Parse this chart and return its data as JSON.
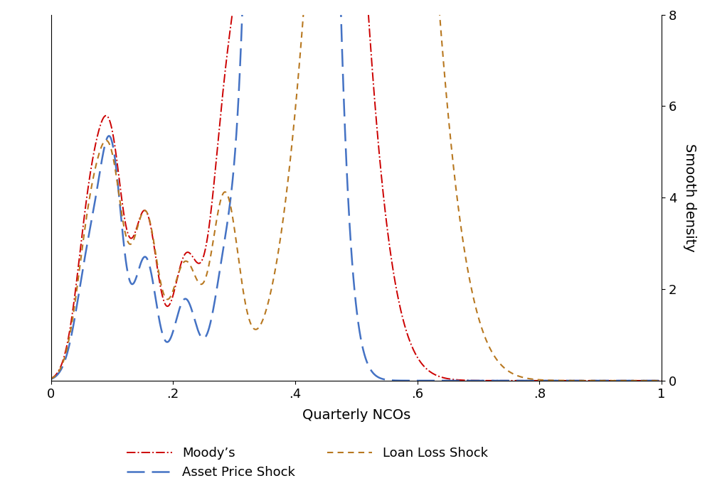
{
  "xlabel": "Quarterly NCOs",
  "ylabel": "Smooth density",
  "xlim": [
    0,
    1
  ],
  "ylim": [
    0,
    8
  ],
  "xticks": [
    0,
    0.2,
    0.4,
    0.6,
    0.8,
    1.0
  ],
  "xtick_labels": [
    "0",
    ".2",
    ".4",
    ".6",
    ".8",
    "1"
  ],
  "yticks": [
    0,
    2,
    4,
    6,
    8
  ],
  "ytick_labels": [
    "0",
    "2",
    "4",
    "6",
    "8"
  ],
  "moodys_color": "#cc0000",
  "asset_color": "#4472c4",
  "loan_color": "#b87820",
  "background_color": "#ffffff",
  "legend_labels": [
    "Moody’s",
    "Asset Price Shock",
    "Loan Loss Shock"
  ],
  "figsize": [
    10.22,
    6.87
  ],
  "dpi": 100
}
